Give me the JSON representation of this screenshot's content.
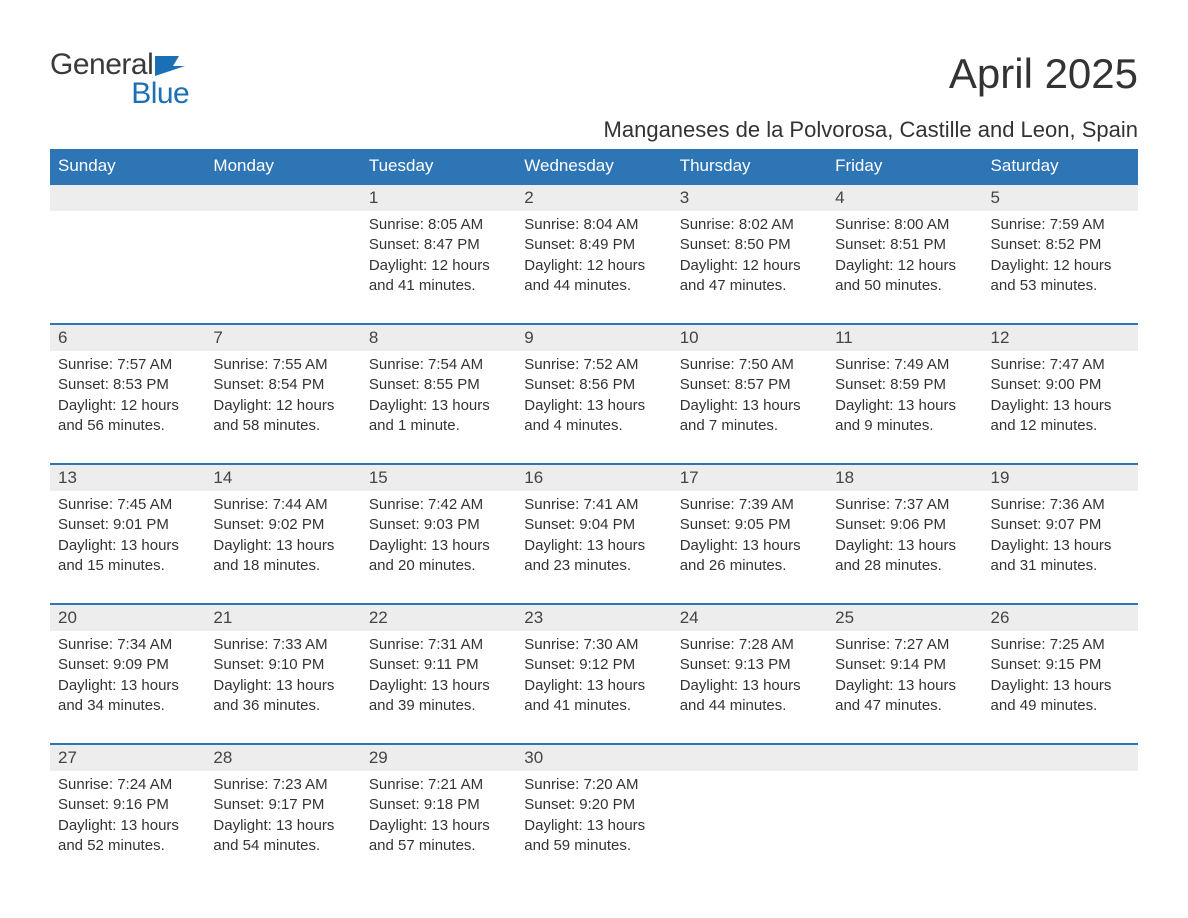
{
  "branding": {
    "logo_general": "General",
    "logo_blue": "Blue",
    "logo_general_color": "#3a3a3a",
    "logo_blue_color": "#1a6fb5",
    "flag_color": "#1a6fb5"
  },
  "header": {
    "month_title": "April 2025",
    "location": "Manganeses de la Polvorosa, Castille and Leon, Spain"
  },
  "calendar": {
    "header_bg": "#2e75b6",
    "header_text_color": "#ffffff",
    "daynum_bg": "#ededed",
    "daynum_border_top": "#2e75b6",
    "body_text_color": "#333333",
    "day_labels": [
      "Sunday",
      "Monday",
      "Tuesday",
      "Wednesday",
      "Thursday",
      "Friday",
      "Saturday"
    ],
    "weeks": [
      [
        null,
        null,
        {
          "num": "1",
          "sunrise": "Sunrise: 8:05 AM",
          "sunset": "Sunset: 8:47 PM",
          "daylight": "Daylight: 12 hours and 41 minutes."
        },
        {
          "num": "2",
          "sunrise": "Sunrise: 8:04 AM",
          "sunset": "Sunset: 8:49 PM",
          "daylight": "Daylight: 12 hours and 44 minutes."
        },
        {
          "num": "3",
          "sunrise": "Sunrise: 8:02 AM",
          "sunset": "Sunset: 8:50 PM",
          "daylight": "Daylight: 12 hours and 47 minutes."
        },
        {
          "num": "4",
          "sunrise": "Sunrise: 8:00 AM",
          "sunset": "Sunset: 8:51 PM",
          "daylight": "Daylight: 12 hours and 50 minutes."
        },
        {
          "num": "5",
          "sunrise": "Sunrise: 7:59 AM",
          "sunset": "Sunset: 8:52 PM",
          "daylight": "Daylight: 12 hours and 53 minutes."
        }
      ],
      [
        {
          "num": "6",
          "sunrise": "Sunrise: 7:57 AM",
          "sunset": "Sunset: 8:53 PM",
          "daylight": "Daylight: 12 hours and 56 minutes."
        },
        {
          "num": "7",
          "sunrise": "Sunrise: 7:55 AM",
          "sunset": "Sunset: 8:54 PM",
          "daylight": "Daylight: 12 hours and 58 minutes."
        },
        {
          "num": "8",
          "sunrise": "Sunrise: 7:54 AM",
          "sunset": "Sunset: 8:55 PM",
          "daylight": "Daylight: 13 hours and 1 minute."
        },
        {
          "num": "9",
          "sunrise": "Sunrise: 7:52 AM",
          "sunset": "Sunset: 8:56 PM",
          "daylight": "Daylight: 13 hours and 4 minutes."
        },
        {
          "num": "10",
          "sunrise": "Sunrise: 7:50 AM",
          "sunset": "Sunset: 8:57 PM",
          "daylight": "Daylight: 13 hours and 7 minutes."
        },
        {
          "num": "11",
          "sunrise": "Sunrise: 7:49 AM",
          "sunset": "Sunset: 8:59 PM",
          "daylight": "Daylight: 13 hours and 9 minutes."
        },
        {
          "num": "12",
          "sunrise": "Sunrise: 7:47 AM",
          "sunset": "Sunset: 9:00 PM",
          "daylight": "Daylight: 13 hours and 12 minutes."
        }
      ],
      [
        {
          "num": "13",
          "sunrise": "Sunrise: 7:45 AM",
          "sunset": "Sunset: 9:01 PM",
          "daylight": "Daylight: 13 hours and 15 minutes."
        },
        {
          "num": "14",
          "sunrise": "Sunrise: 7:44 AM",
          "sunset": "Sunset: 9:02 PM",
          "daylight": "Daylight: 13 hours and 18 minutes."
        },
        {
          "num": "15",
          "sunrise": "Sunrise: 7:42 AM",
          "sunset": "Sunset: 9:03 PM",
          "daylight": "Daylight: 13 hours and 20 minutes."
        },
        {
          "num": "16",
          "sunrise": "Sunrise: 7:41 AM",
          "sunset": "Sunset: 9:04 PM",
          "daylight": "Daylight: 13 hours and 23 minutes."
        },
        {
          "num": "17",
          "sunrise": "Sunrise: 7:39 AM",
          "sunset": "Sunset: 9:05 PM",
          "daylight": "Daylight: 13 hours and 26 minutes."
        },
        {
          "num": "18",
          "sunrise": "Sunrise: 7:37 AM",
          "sunset": "Sunset: 9:06 PM",
          "daylight": "Daylight: 13 hours and 28 minutes."
        },
        {
          "num": "19",
          "sunrise": "Sunrise: 7:36 AM",
          "sunset": "Sunset: 9:07 PM",
          "daylight": "Daylight: 13 hours and 31 minutes."
        }
      ],
      [
        {
          "num": "20",
          "sunrise": "Sunrise: 7:34 AM",
          "sunset": "Sunset: 9:09 PM",
          "daylight": "Daylight: 13 hours and 34 minutes."
        },
        {
          "num": "21",
          "sunrise": "Sunrise: 7:33 AM",
          "sunset": "Sunset: 9:10 PM",
          "daylight": "Daylight: 13 hours and 36 minutes."
        },
        {
          "num": "22",
          "sunrise": "Sunrise: 7:31 AM",
          "sunset": "Sunset: 9:11 PM",
          "daylight": "Daylight: 13 hours and 39 minutes."
        },
        {
          "num": "23",
          "sunrise": "Sunrise: 7:30 AM",
          "sunset": "Sunset: 9:12 PM",
          "daylight": "Daylight: 13 hours and 41 minutes."
        },
        {
          "num": "24",
          "sunrise": "Sunrise: 7:28 AM",
          "sunset": "Sunset: 9:13 PM",
          "daylight": "Daylight: 13 hours and 44 minutes."
        },
        {
          "num": "25",
          "sunrise": "Sunrise: 7:27 AM",
          "sunset": "Sunset: 9:14 PM",
          "daylight": "Daylight: 13 hours and 47 minutes."
        },
        {
          "num": "26",
          "sunrise": "Sunrise: 7:25 AM",
          "sunset": "Sunset: 9:15 PM",
          "daylight": "Daylight: 13 hours and 49 minutes."
        }
      ],
      [
        {
          "num": "27",
          "sunrise": "Sunrise: 7:24 AM",
          "sunset": "Sunset: 9:16 PM",
          "daylight": "Daylight: 13 hours and 52 minutes."
        },
        {
          "num": "28",
          "sunrise": "Sunrise: 7:23 AM",
          "sunset": "Sunset: 9:17 PM",
          "daylight": "Daylight: 13 hours and 54 minutes."
        },
        {
          "num": "29",
          "sunrise": "Sunrise: 7:21 AM",
          "sunset": "Sunset: 9:18 PM",
          "daylight": "Daylight: 13 hours and 57 minutes."
        },
        {
          "num": "30",
          "sunrise": "Sunrise: 7:20 AM",
          "sunset": "Sunset: 9:20 PM",
          "daylight": "Daylight: 13 hours and 59 minutes."
        },
        null,
        null,
        null
      ]
    ]
  }
}
